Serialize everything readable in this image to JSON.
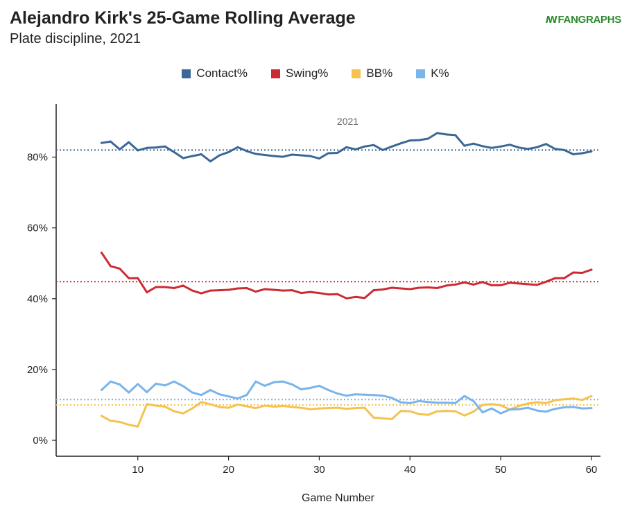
{
  "header": {
    "title": "Alejandro Kirk's 25-Game Rolling Average",
    "subtitle": "Plate discipline, 2021",
    "brand_mark": "ꟿ",
    "brand_fan": "FAN",
    "brand_graphs": "GRAPHS"
  },
  "chart_data": {
    "type": "line",
    "title": "Alejandro Kirk's 25-Game Rolling Average",
    "subtitle": "Plate discipline, 2021",
    "panel_label": "2021",
    "xlabel": "Game Number",
    "ylabel": "",
    "xlim": [
      1,
      61
    ],
    "ylim": [
      -4.5,
      95
    ],
    "x_ticks": [
      10,
      20,
      30,
      40,
      50,
      60
    ],
    "y_ticks": [
      0,
      20,
      40,
      60,
      80
    ],
    "y_tick_labels": [
      "0%",
      "20%",
      "40%",
      "60%",
      "80%"
    ],
    "legend_position": "top-center",
    "grid": false,
    "x": [
      6,
      7,
      8,
      9,
      10,
      11,
      12,
      13,
      14,
      15,
      16,
      17,
      18,
      19,
      20,
      21,
      22,
      23,
      24,
      25,
      26,
      27,
      28,
      29,
      30,
      31,
      32,
      33,
      34,
      35,
      36,
      37,
      38,
      39,
      40,
      41,
      42,
      43,
      44,
      45,
      46,
      47,
      48,
      49,
      50,
      51,
      52,
      53,
      54,
      55,
      56,
      57,
      58,
      59,
      60
    ],
    "series": [
      {
        "name": "Contact%",
        "color": "#3a6795",
        "average": 82,
        "values": [
          84,
          84.4,
          82.2,
          84.2,
          81.9,
          82.6,
          82.7,
          83,
          81.4,
          79.7,
          80.3,
          80.8,
          78.8,
          80.5,
          81.4,
          82.8,
          81.7,
          80.9,
          80.6,
          80.3,
          80.1,
          80.7,
          80.5,
          80.3,
          79.6,
          81.1,
          81.2,
          82.8,
          82.2,
          83,
          83.4,
          82,
          83,
          83.9,
          84.7,
          84.8,
          85.2,
          86.8,
          86.4,
          86.2,
          83.2,
          83.8,
          83.1,
          82.6,
          83,
          83.5,
          82.7,
          82.3,
          82.8,
          83.7,
          82.3,
          82,
          80.8,
          81.1,
          81.6
        ]
      },
      {
        "name": "Swing%",
        "color": "#cc2b33",
        "average": 44.8,
        "values": [
          53,
          49.2,
          48.5,
          45.8,
          45.8,
          41.8,
          43.3,
          43.3,
          43,
          43.7,
          42.3,
          41.5,
          42.3,
          42.4,
          42.5,
          42.9,
          43,
          42,
          42.7,
          42.5,
          42.3,
          42.4,
          41.6,
          41.9,
          41.6,
          41.2,
          41.3,
          40.1,
          40.5,
          40.2,
          42.4,
          42.6,
          43.1,
          42.9,
          42.7,
          43.1,
          43.2,
          43,
          43.7,
          44,
          44.6,
          44,
          44.7,
          43.8,
          43.8,
          44.5,
          44.3,
          44.1,
          43.9,
          44.8,
          45.8,
          45.8,
          47.4,
          47.3,
          48.2
        ]
      },
      {
        "name": "BB%",
        "color": "#f5c250",
        "average": 10,
        "values": [
          6.9,
          5.5,
          5.2,
          4.4,
          3.9,
          10.2,
          9.8,
          9.5,
          8.2,
          7.6,
          9,
          10.8,
          10.2,
          9.4,
          9.2,
          10.1,
          9.6,
          9.1,
          9.8,
          9.5,
          9.7,
          9.4,
          9.2,
          8.8,
          9,
          9.1,
          9.2,
          8.9,
          9.1,
          9.2,
          6.4,
          6.2,
          6,
          8.3,
          8.2,
          7.4,
          7.2,
          8.2,
          8.3,
          8.2,
          7,
          8.1,
          10,
          10.2,
          9.9,
          8.7,
          9.7,
          10.4,
          10.7,
          10.5,
          11.3,
          11.6,
          11.8,
          11.4,
          12.5
        ]
      },
      {
        "name": "K%",
        "color": "#79b4ea",
        "average": 11.5,
        "values": [
          14.2,
          16.6,
          15.8,
          13.5,
          15.9,
          13.6,
          16,
          15.5,
          16.6,
          15.3,
          13.5,
          12.8,
          14.2,
          13,
          12.4,
          11.8,
          12.8,
          16.6,
          15.4,
          16.4,
          16.6,
          15.8,
          14.4,
          14.8,
          15.4,
          14.2,
          13.2,
          12.6,
          13,
          12.9,
          12.8,
          12.6,
          12,
          10.7,
          10.5,
          11.1,
          10.8,
          10.6,
          10.6,
          10.5,
          12.5,
          11.1,
          7.9,
          9,
          7.6,
          8.7,
          8.8,
          9.2,
          8.4,
          8.1,
          8.9,
          9.3,
          9.4,
          9,
          9.1
        ]
      }
    ]
  }
}
